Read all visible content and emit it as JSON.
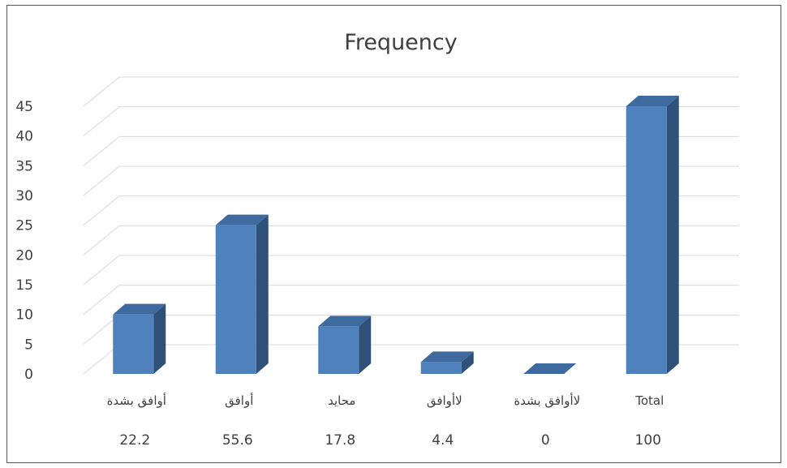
{
  "chart_data": {
    "type": "bar",
    "title": "Frequency",
    "categories": [
      "أوافق بشدة",
      "أوافق",
      "محايد",
      "لاأوافق",
      "لاأوافق بشدة",
      "Total"
    ],
    "values": [
      10,
      25,
      8,
      2,
      0,
      45
    ],
    "percent_labels": [
      "22.2",
      "55.6",
      "17.8",
      "4.4",
      "0",
      "100"
    ],
    "ylim": [
      0,
      45
    ],
    "yticks": [
      0,
      5,
      10,
      15,
      20,
      25,
      30,
      35,
      40,
      45
    ],
    "grid": true,
    "three_d": true,
    "colors": {
      "bar_front": "#4f81bd",
      "bar_side": "#2f5179",
      "bar_top": "#3e6aa0",
      "grid": "#d9d9d9",
      "text": "#404040"
    }
  }
}
